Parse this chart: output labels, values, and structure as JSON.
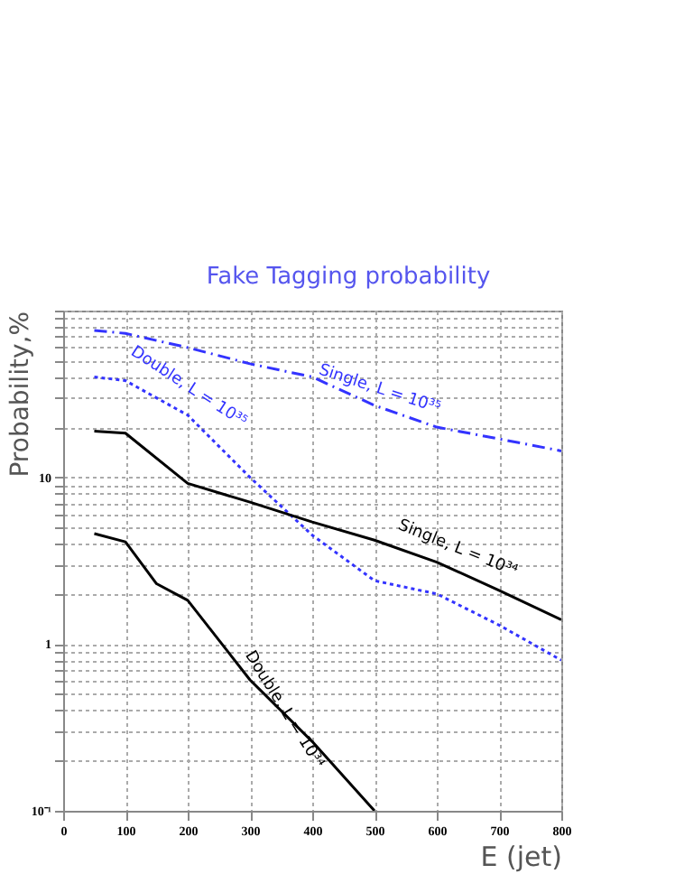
{
  "chart_data": {
    "type": "line",
    "title": "Fake Tagging probability",
    "xlabel": "E (jet)",
    "ylabel": "Probability,%",
    "log": "y",
    "grid": true,
    "legend": false,
    "xlim": [
      0,
      800
    ],
    "xticks": [
      0,
      100,
      200,
      300,
      400,
      500,
      600,
      700,
      800
    ],
    "ylim": [
      0.1,
      100
    ],
    "yticks": [
      {
        "value": 0.1,
        "label": "10⁻¹"
      },
      {
        "value": 0.2,
        "label": null
      },
      {
        "value": 0.3,
        "label": null
      },
      {
        "value": 0.4,
        "label": null
      },
      {
        "value": 0.5,
        "label": null
      },
      {
        "value": 0.6,
        "label": null
      },
      {
        "value": 0.7,
        "label": null
      },
      {
        "value": 0.8,
        "label": null
      },
      {
        "value": 0.9,
        "label": null
      },
      1,
      {
        "value": 2,
        "label": null
      },
      {
        "value": 3,
        "label": null
      },
      {
        "value": 4,
        "label": null
      },
      {
        "value": 5,
        "label": null
      },
      {
        "value": 6,
        "label": null
      },
      {
        "value": 7,
        "label": null
      },
      {
        "value": 8,
        "label": null
      },
      {
        "value": 9,
        "label": null
      },
      10,
      {
        "value": 20,
        "label": null
      },
      {
        "value": 30,
        "label": null
      },
      {
        "value": 40,
        "label": null
      },
      {
        "value": 50,
        "label": null
      },
      {
        "value": 60,
        "label": null
      },
      {
        "value": 70,
        "label": null
      },
      {
        "value": 80,
        "label": null
      },
      {
        "value": 90,
        "label": null
      },
      {
        "value": 100,
        "label": null
      }
    ],
    "series": [
      {
        "color": "#3333ff",
        "line_style": "dashed",
        "x": [
          50,
          100,
          200,
          300,
          400,
          500,
          600,
          700,
          800
        ],
        "values": [
          76,
          73,
          60,
          48,
          40,
          27,
          20,
          17,
          14.4
        ]
      },
      {
        "color": "#3333ff",
        "line_style": "dotted",
        "x": [
          50,
          100,
          200,
          300,
          400,
          500,
          600,
          700,
          800
        ],
        "values": [
          40,
          38,
          23.6,
          10,
          4.5,
          2.4,
          2.0,
          1.3,
          0.8
        ]
      },
      {
        "color": "#000000",
        "line_style": "solid",
        "x": [
          50,
          100,
          200,
          300,
          400,
          500,
          600,
          700,
          800
        ],
        "values": [
          18.9,
          18.4,
          9.2,
          7.1,
          5.4,
          4.2,
          3.1,
          2.1,
          1.4
        ]
      },
      {
        "color": "#000000",
        "line_style": "solid",
        "x": [
          50,
          100,
          150,
          200,
          300,
          400,
          500
        ],
        "values": [
          4.6,
          4.1,
          2.3,
          1.83,
          0.61,
          0.26,
          0.1
        ]
      }
    ],
    "annotations": [
      {
        "text": "Single, L = 10³⁵",
        "x": 500,
        "y": 27
      },
      {
        "text": "Double, L = 10³⁵",
        "x": 200,
        "y": 23.6
      },
      {
        "text": "Single, L = 10³⁴",
        "x": 600,
        "y": 3.1
      },
      {
        "text": "Double, L = 10³⁴",
        "x": 300,
        "y": 0.61
      }
    ]
  }
}
